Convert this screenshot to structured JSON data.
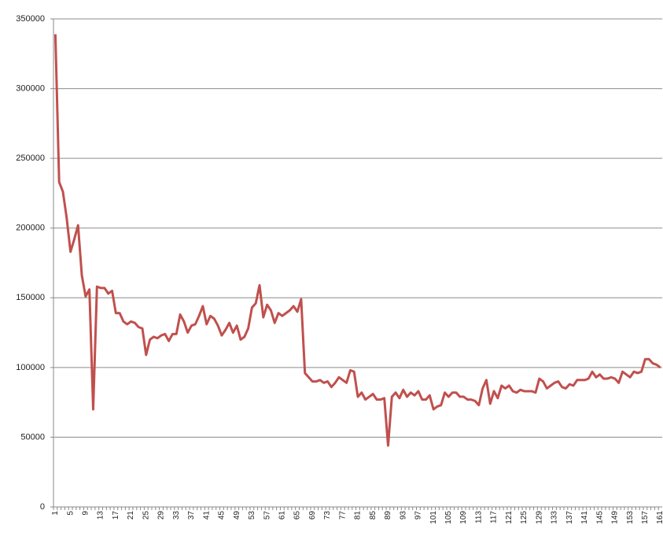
{
  "chart_data": {
    "type": "line",
    "categories": [
      "1",
      null,
      null,
      null,
      "5",
      null,
      null,
      null,
      "9",
      null,
      null,
      null,
      "13",
      null,
      null,
      null,
      "17",
      null,
      null,
      null,
      "21",
      null,
      null,
      null,
      "25",
      null,
      null,
      null,
      "29",
      null,
      null,
      null,
      "33",
      null,
      null,
      null,
      "37",
      null,
      null,
      null,
      "41",
      null,
      null,
      null,
      "45",
      null,
      null,
      null,
      "49",
      null,
      null,
      null,
      "53",
      null,
      null,
      null,
      "57",
      null,
      null,
      null,
      "61",
      null,
      null,
      null,
      "65",
      null,
      null,
      null,
      "69",
      null,
      null,
      null,
      "73",
      null,
      null,
      null,
      "77",
      null,
      null,
      null,
      "81",
      null,
      null,
      null,
      "85",
      null,
      null,
      null,
      "89",
      null,
      null,
      null,
      "93",
      null,
      null,
      null,
      "97",
      null,
      null,
      null,
      "101",
      null,
      null,
      null,
      "105",
      null,
      null,
      null,
      "109",
      null,
      null,
      null,
      "113",
      null,
      null,
      null,
      "117",
      null,
      null,
      null,
      "121",
      null,
      null,
      null,
      "125",
      null,
      null,
      null,
      "129",
      null,
      null,
      null,
      "133",
      null,
      null,
      null,
      "137",
      null,
      null,
      null,
      "141",
      null,
      null,
      null,
      "145",
      null,
      null,
      null,
      "149",
      null,
      null,
      null,
      "153",
      null,
      null,
      null,
      "157",
      null,
      null,
      null,
      "161"
    ],
    "values": [
      339000,
      233000,
      226000,
      207000,
      183000,
      192000,
      202000,
      166000,
      151000,
      156000,
      70000,
      158000,
      157000,
      157000,
      153000,
      155000,
      139000,
      139000,
      133000,
      131000,
      133000,
      132000,
      129000,
      128000,
      109000,
      120000,
      122000,
      121000,
      123000,
      124000,
      119000,
      124000,
      124000,
      138000,
      133000,
      125000,
      130000,
      131000,
      137000,
      144000,
      131000,
      137000,
      135000,
      130000,
      123000,
      127000,
      132000,
      125000,
      130000,
      120000,
      122000,
      128000,
      143000,
      146000,
      159000,
      136000,
      145000,
      141000,
      132000,
      139000,
      137000,
      139000,
      141000,
      144000,
      140000,
      149000,
      96000,
      93000,
      90000,
      90000,
      91000,
      89000,
      90000,
      86000,
      89000,
      93000,
      91000,
      89000,
      98000,
      97000,
      79000,
      82000,
      77000,
      79000,
      81000,
      77000,
      77000,
      78000,
      44000,
      79000,
      82000,
      78000,
      84000,
      79000,
      82000,
      80000,
      83000,
      77000,
      77000,
      80000,
      70000,
      72000,
      73000,
      82000,
      79000,
      82000,
      82000,
      79000,
      79000,
      77000,
      77000,
      76000,
      73000,
      85000,
      91000,
      74000,
      83000,
      78000,
      87000,
      85000,
      87000,
      83000,
      82000,
      84000,
      83000,
      83000,
      83000,
      82000,
      92000,
      90000,
      85000,
      87000,
      89000,
      90000,
      86000,
      85000,
      88000,
      87000,
      91000,
      91000,
      91000,
      92000,
      97000,
      93000,
      95000,
      92000,
      92000,
      93000,
      92000,
      89000,
      97000,
      95000,
      93000,
      97000,
      96000,
      97000,
      106000,
      106000,
      103000,
      102000,
      100000
    ],
    "color": "#c0504d",
    "ylim": [
      0,
      350000
    ],
    "yticks": [
      0,
      50000,
      100000,
      150000,
      200000,
      250000,
      300000,
      350000
    ],
    "grid": true
  }
}
